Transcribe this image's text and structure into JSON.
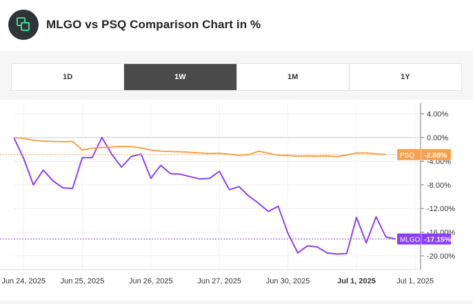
{
  "header": {
    "title": "MLGO vs PSQ Comparison Chart in %",
    "logo_icon": "copy-squares-icon"
  },
  "tabs": [
    {
      "label": "1D",
      "active": false
    },
    {
      "label": "1W",
      "active": true
    },
    {
      "label": "1M",
      "active": false
    },
    {
      "label": "1Y",
      "active": false
    }
  ],
  "colors": {
    "mlgo": "#8a3ffc",
    "psq": "#f7a04b",
    "active_tab": "#4a4a4a"
  },
  "chart_data": {
    "type": "line",
    "yunit": "%",
    "ylim": [
      -22.5,
      6
    ],
    "yticks": [
      {
        "value": 4,
        "label": "4.00%"
      },
      {
        "value": 0,
        "label": "0.00%"
      },
      {
        "value": -4,
        "label": "-4.00%"
      },
      {
        "value": -8,
        "label": "-8.00%"
      },
      {
        "value": -12,
        "label": "-12.00%"
      },
      {
        "value": -16,
        "label": "-16.00%"
      },
      {
        "value": -20,
        "label": "-20.00%"
      }
    ],
    "xticks": [
      {
        "index": 1,
        "label": "Jun 24, 2025",
        "bold": false
      },
      {
        "index": 7,
        "label": "Jun 25, 2025",
        "bold": false
      },
      {
        "index": 14,
        "label": "Jun 26, 2025",
        "bold": false
      },
      {
        "index": 21,
        "label": "Jun 27, 2025",
        "bold": false
      },
      {
        "index": 28,
        "label": "Jun 30, 2025",
        "bold": false
      },
      {
        "index": 35,
        "label": "Jul 1, 2025",
        "bold": true
      },
      {
        "index": 41,
        "label": "Jul 1, 2025",
        "bold": false
      }
    ],
    "grid": true,
    "series": [
      {
        "name": "MLGO",
        "last_label": "-17.15%",
        "values": [
          0,
          -3.5,
          -8,
          -5.5,
          -7.3,
          -8.5,
          -8.6,
          -3.4,
          -3.4,
          0,
          -2.8,
          -5,
          -3.2,
          -2.8,
          -6.9,
          -4.7,
          -6.1,
          -6.2,
          -6.6,
          -7,
          -6.9,
          -5.7,
          -8.8,
          -8.3,
          -9.9,
          -11.1,
          -12.5,
          -11.6,
          -16.2,
          -19.5,
          -18.3,
          -18.5,
          -19.5,
          -19.7,
          -19.6,
          -13.5,
          -17.8,
          -13.4,
          -16.8,
          -17.15
        ]
      },
      {
        "name": "PSQ",
        "last_label": "-2.88%",
        "values": [
          0,
          -0.15,
          -0.45,
          -0.6,
          -0.65,
          -0.7,
          -0.65,
          -2.1,
          -1.8,
          -1.7,
          -1.6,
          -1.5,
          -1.55,
          -1.75,
          -2.1,
          -2.3,
          -2.35,
          -2.4,
          -2.5,
          -2.6,
          -2.7,
          -2.65,
          -2.85,
          -3.0,
          -2.9,
          -2.3,
          -2.65,
          -3.0,
          -3.05,
          -3.15,
          -3.1,
          -3.15,
          -3.1,
          -3.25,
          -2.95,
          -2.6,
          -2.6,
          -2.75,
          -2.88
        ]
      }
    ]
  }
}
